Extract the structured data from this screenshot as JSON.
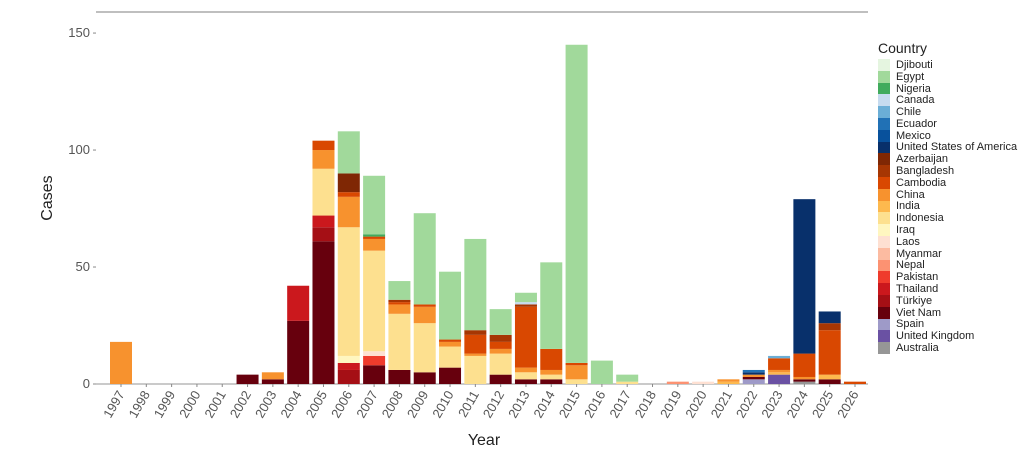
{
  "chart_data": {
    "type": "bar",
    "stacked": true,
    "title": "",
    "xlabel": "Year",
    "ylabel": "Cases",
    "ylim": [
      0,
      159
    ],
    "yticks": [
      0,
      50,
      100,
      150
    ],
    "legend_title": "Country",
    "legend_position": "right",
    "categories": [
      "1997",
      "1998",
      "1999",
      "2000",
      "2001",
      "2002",
      "2003",
      "2004",
      "2005",
      "2006",
      "2007",
      "2008",
      "2009",
      "2010",
      "2011",
      "2012",
      "2013",
      "2014",
      "2015",
      "2016",
      "2017",
      "2018",
      "2019",
      "2020",
      "2021",
      "2022",
      "2023",
      "2024",
      "2025",
      "2026"
    ],
    "countries": [
      {
        "name": "Djibouti",
        "color": "#e5f5e0"
      },
      {
        "name": "Egypt",
        "color": "#a1d99b"
      },
      {
        "name": "Nigeria",
        "color": "#41ab5d"
      },
      {
        "name": "Canada",
        "color": "#c6dbef"
      },
      {
        "name": "Chile",
        "color": "#6baed6"
      },
      {
        "name": "Ecuador",
        "color": "#2171b5"
      },
      {
        "name": "Mexico",
        "color": "#08519c"
      },
      {
        "name": "United States of America",
        "color": "#08306b"
      },
      {
        "name": "Azerbaijan",
        "color": "#7f2704"
      },
      {
        "name": "Bangladesh",
        "color": "#a63603"
      },
      {
        "name": "Cambodia",
        "color": "#d94801"
      },
      {
        "name": "China",
        "color": "#f7922e"
      },
      {
        "name": "India",
        "color": "#fdb94e"
      },
      {
        "name": "Indonesia",
        "color": "#fde08f"
      },
      {
        "name": "Iraq",
        "color": "#fff6c0"
      },
      {
        "name": "Laos",
        "color": "#fee0d2"
      },
      {
        "name": "Myanmar",
        "color": "#fcbba1"
      },
      {
        "name": "Nepal",
        "color": "#fc9272"
      },
      {
        "name": "Pakistan",
        "color": "#ef3b2c"
      },
      {
        "name": "Thailand",
        "color": "#cb181d"
      },
      {
        "name": "Türkiye",
        "color": "#a50f15"
      },
      {
        "name": "Viet Nam",
        "color": "#67000d"
      },
      {
        "name": "Spain",
        "color": "#9e9ac8"
      },
      {
        "name": "United Kingdom",
        "color": "#6a51a3"
      },
      {
        "name": "Australia",
        "color": "#969696"
      }
    ],
    "values": {
      "1997": {
        "China": 18
      },
      "2002": {
        "Viet Nam": 4
      },
      "2003": {
        "Viet Nam": 2,
        "China": 3
      },
      "2004": {
        "Viet Nam": 27,
        "Thailand": 15
      },
      "2005": {
        "Viet Nam": 61,
        "Türkiye": 6,
        "Thailand": 5,
        "Indonesia": 20,
        "China": 8,
        "Cambodia": 4
      },
      "2006": {
        "Türkiye": 6,
        "Thailand": 3,
        "Iraq": 3,
        "Indonesia": 55,
        "China": 13,
        "Cambodia": 2,
        "Azerbaijan": 8,
        "Egypt": 18
      },
      "2007": {
        "Viet Nam": 8,
        "Pakistan": 4,
        "Laos": 2,
        "Indonesia": 43,
        "China": 5,
        "Cambodia": 1,
        "Nigeria": 1,
        "Egypt": 25
      },
      "2008": {
        "Viet Nam": 6,
        "Indonesia": 24,
        "China": 4,
        "Cambodia": 1,
        "Bangladesh": 1,
        "Egypt": 8
      },
      "2009": {
        "Viet Nam": 5,
        "Indonesia": 21,
        "China": 7,
        "Cambodia": 1,
        "Egypt": 39
      },
      "2010": {
        "Viet Nam": 7,
        "Indonesia": 9,
        "China": 2,
        "Cambodia": 1,
        "Egypt": 29
      },
      "2011": {
        "Indonesia": 12,
        "China": 1,
        "Cambodia": 8,
        "Bangladesh": 2,
        "Egypt": 39
      },
      "2012": {
        "Viet Nam": 4,
        "Indonesia": 9,
        "China": 2,
        "Cambodia": 3,
        "Bangladesh": 3,
        "Egypt": 11
      },
      "2013": {
        "Viet Nam": 2,
        "Indonesia": 3,
        "China": 2,
        "Cambodia": 26,
        "Bangladesh": 1,
        "Canada": 1,
        "Egypt": 4
      },
      "2014": {
        "Viet Nam": 2,
        "Indonesia": 2,
        "China": 2,
        "Cambodia": 9,
        "Egypt": 37
      },
      "2015": {
        "Indonesia": 2,
        "China": 6,
        "Cambodia": 1,
        "Egypt": 136
      },
      "2016": {
        "Egypt": 10
      },
      "2017": {
        "Indonesia": 1,
        "Egypt": 3
      },
      "2019": {
        "Nepal": 1
      },
      "2020": {
        "Laos": 1
      },
      "2021": {
        "India": 1,
        "China": 1
      },
      "2022": {
        "Spain": 2,
        "Viet Nam": 1,
        "China": 1,
        "United States of America": 1,
        "Ecuador": 1
      },
      "2023": {
        "United Kingdom": 4,
        "India": 1,
        "China": 1,
        "Cambodia": 5,
        "Chile": 1
      },
      "2024": {
        "Australia": 1,
        "Viet Nam": 1,
        "China": 1,
        "Cambodia": 10,
        "United States of America": 66
      },
      "2025": {
        "Viet Nam": 2,
        "India": 2,
        "Cambodia": 19,
        "Bangladesh": 3,
        "United States of America": 5
      },
      "2026": {
        "Cambodia": 1
      }
    }
  }
}
